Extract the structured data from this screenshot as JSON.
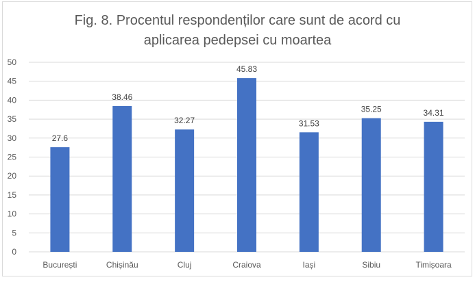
{
  "chart_data": {
    "type": "bar",
    "title_lines": [
      "Fig. 8. Procentul respondenților care sunt de acord cu",
      "aplicarea pedepsei cu moartea"
    ],
    "categories": [
      "București",
      "Chișinău",
      "Cluj",
      "Craiova",
      "Iași",
      "Sibiu",
      "Timișoara"
    ],
    "values": [
      27.6,
      38.46,
      32.27,
      45.83,
      31.53,
      35.25,
      34.31
    ],
    "data_labels": [
      "27.6",
      "38.46",
      "32.27",
      "45.83",
      "31.53",
      "35.25",
      "34.31"
    ],
    "yticks": [
      "0",
      "5",
      "10",
      "15",
      "20",
      "25",
      "30",
      "35",
      "40",
      "45",
      "50"
    ],
    "ylim": [
      0,
      50
    ],
    "xlabel": "",
    "ylabel": "",
    "grid": true,
    "legend": "none",
    "bar_color": "#4472c4",
    "grid_color": "#d9d9d9"
  }
}
